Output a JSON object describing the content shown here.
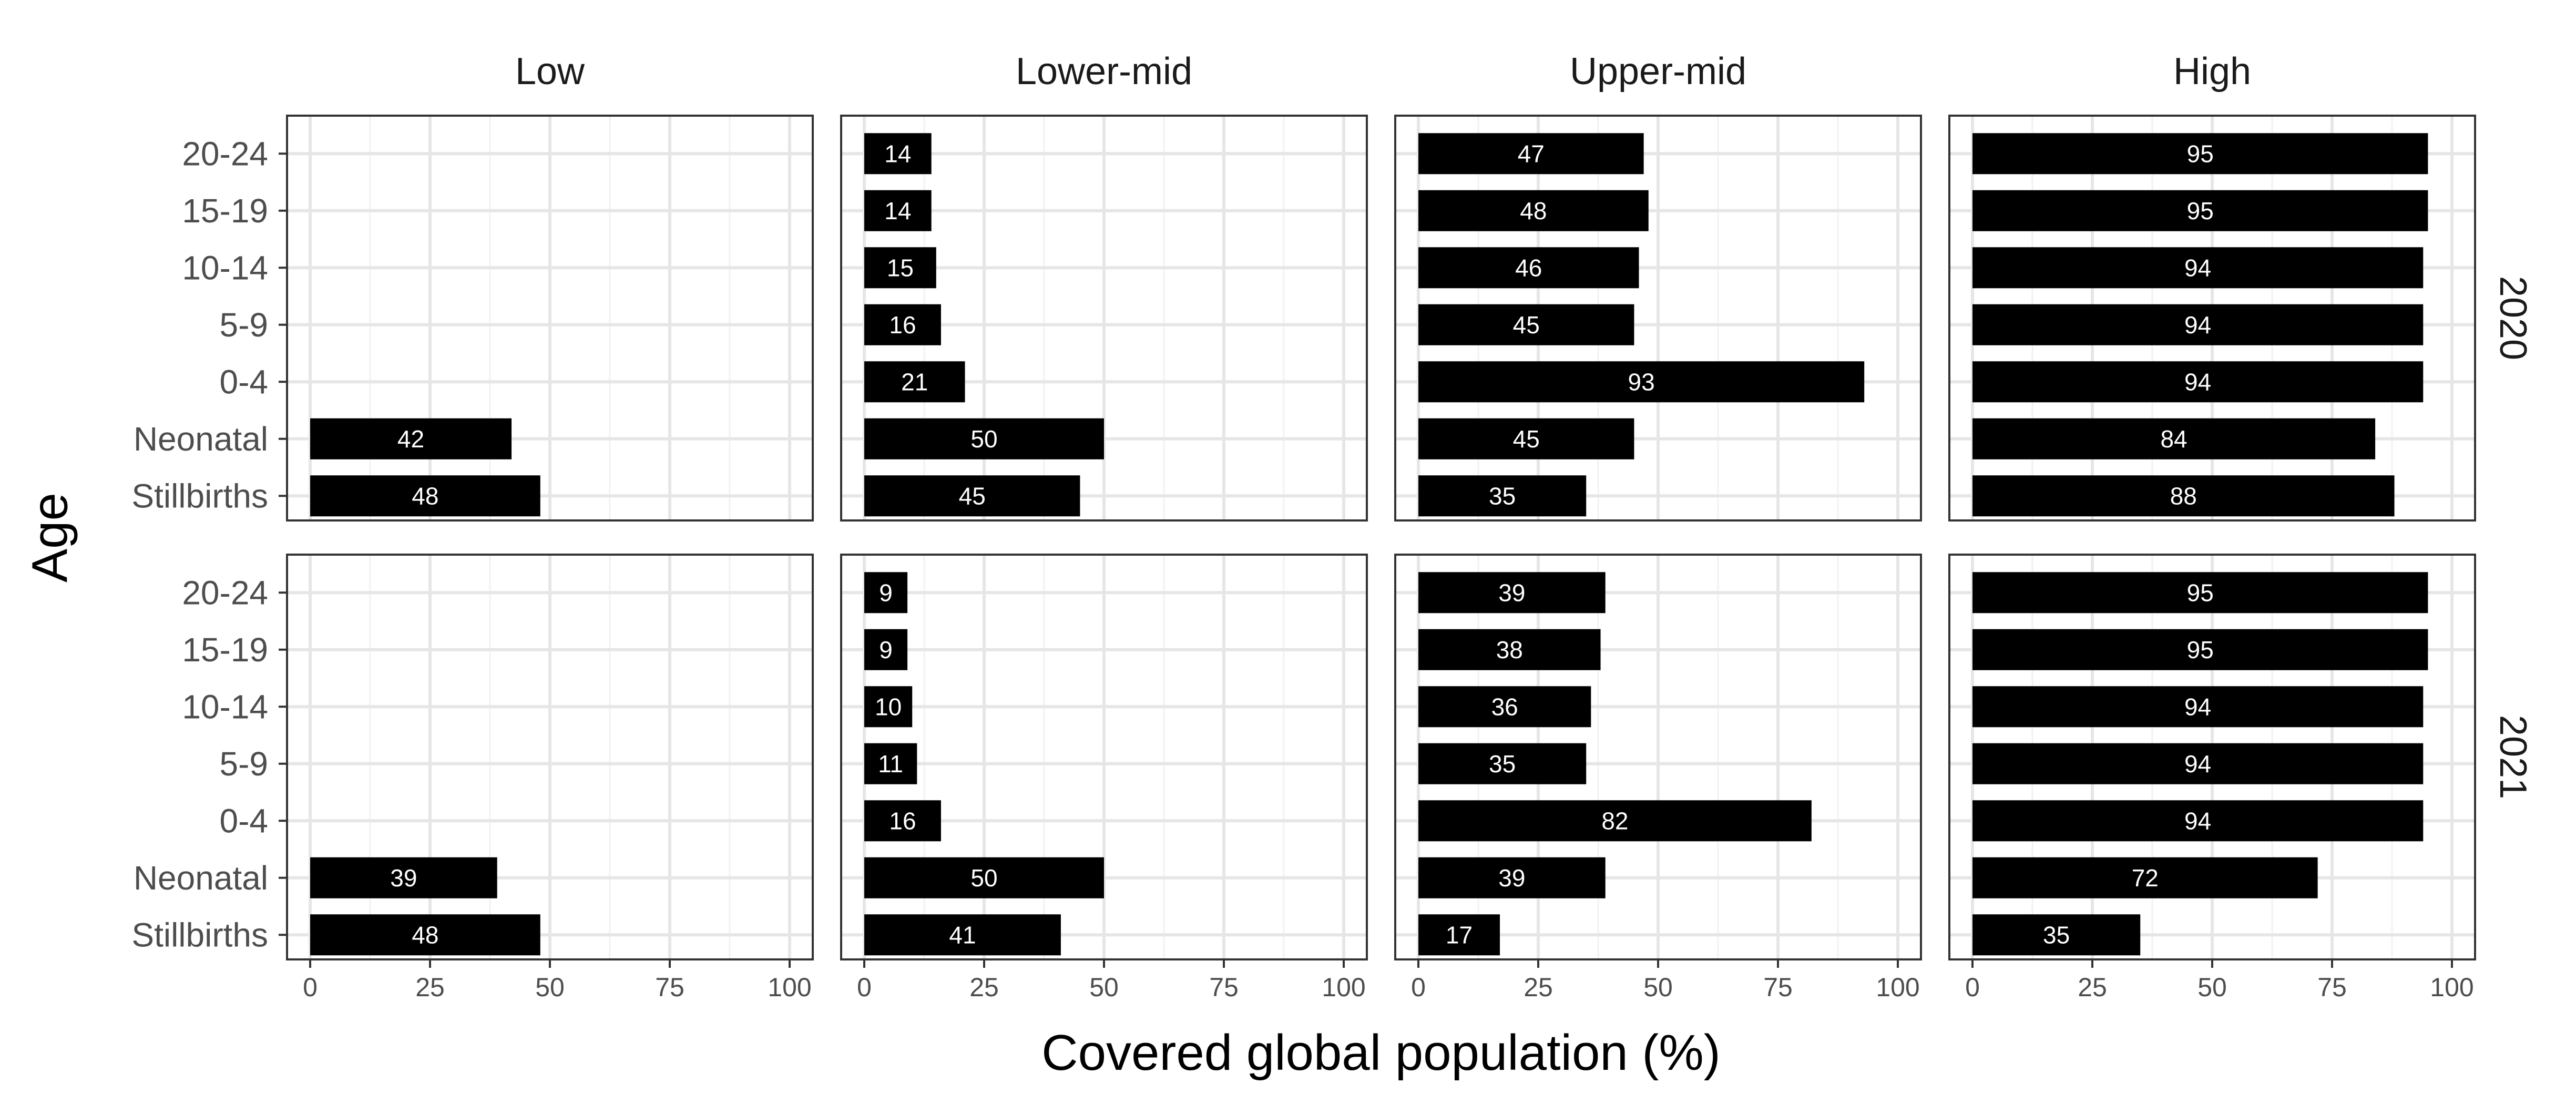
{
  "chart_data": {
    "type": "bar",
    "orientation": "horizontal",
    "xlabel": "Covered global population (%)",
    "ylabel": "Age",
    "xlim": [
      0,
      100
    ],
    "xticks": [
      0,
      25,
      50,
      75,
      100
    ],
    "grid": true,
    "bar_color": "#000000",
    "columns": [
      "Low",
      "Lower-mid",
      "Upper-mid",
      "High"
    ],
    "rows": [
      "2020",
      "2021"
    ],
    "categories": [
      "20-24",
      "15-19",
      "10-14",
      "5-9",
      "0-4",
      "Neonatal",
      "Stillbirths"
    ],
    "panels": [
      {
        "row": "2020",
        "column": "Low",
        "values": [
          null,
          null,
          null,
          null,
          null,
          42,
          48
        ]
      },
      {
        "row": "2020",
        "column": "Lower-mid",
        "values": [
          14,
          14,
          15,
          16,
          21,
          50,
          45
        ]
      },
      {
        "row": "2020",
        "column": "Upper-mid",
        "values": [
          47,
          48,
          46,
          45,
          93,
          45,
          35
        ]
      },
      {
        "row": "2020",
        "column": "High",
        "values": [
          95,
          95,
          94,
          94,
          94,
          84,
          88
        ]
      },
      {
        "row": "2021",
        "column": "Low",
        "values": [
          null,
          null,
          null,
          null,
          null,
          39,
          48
        ]
      },
      {
        "row": "2021",
        "column": "Lower-mid",
        "values": [
          9,
          9,
          10,
          11,
          16,
          50,
          41
        ]
      },
      {
        "row": "2021",
        "column": "Upper-mid",
        "values": [
          39,
          38,
          36,
          35,
          82,
          39,
          17
        ]
      },
      {
        "row": "2021",
        "column": "High",
        "values": [
          95,
          95,
          94,
          94,
          94,
          72,
          35
        ]
      }
    ]
  }
}
